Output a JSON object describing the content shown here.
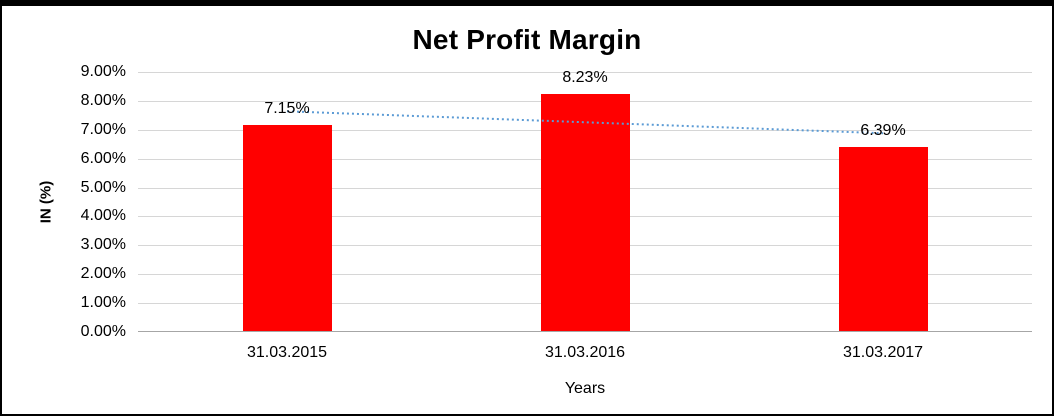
{
  "chart_data": {
    "type": "bar",
    "title": "Net Profit Margin",
    "categories": [
      "31.03.2015",
      "31.03.2016",
      "31.03.2017"
    ],
    "values": [
      7.15,
      8.23,
      6.39
    ],
    "data_labels": [
      "7.15%",
      "8.23%",
      "6.39%"
    ],
    "xlabel": "Years",
    "ylabel": "IN (%)",
    "ylim": [
      0,
      9
    ],
    "ytick_step": 1,
    "ytick_labels": [
      "0.00%",
      "1.00%",
      "2.00%",
      "3.00%",
      "4.00%",
      "5.00%",
      "6.00%",
      "7.00%",
      "8.00%",
      "9.00%"
    ],
    "grid": true,
    "legend": "none",
    "bar_color": "#ff0000",
    "trendline": {
      "style": "dotted",
      "color": "#5b9bd5",
      "start_value": 7.64,
      "end_value": 6.88
    }
  }
}
